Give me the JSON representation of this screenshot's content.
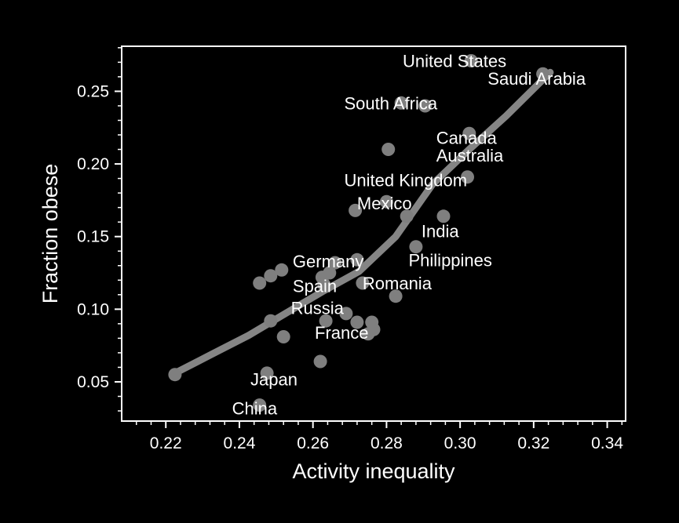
{
  "theme": {
    "background": "#000000",
    "foreground": "#ffffff",
    "point_color": "#7f7f7f",
    "trend_color": "#8c8c8c"
  },
  "chart_data": {
    "type": "scatter",
    "title": "",
    "xlabel": "Activity inequality",
    "ylabel": "Fraction obese",
    "xlim": [
      0.208,
      0.345
    ],
    "ylim": [
      0.023,
      0.281
    ],
    "xticks": [
      0.22,
      0.24,
      0.26,
      0.28,
      0.3,
      0.32,
      0.34
    ],
    "xtick_labels": [
      "0.22",
      "0.24",
      "0.26",
      "0.28",
      "0.30",
      "0.32",
      "0.34"
    ],
    "yticks": [
      0.05,
      0.1,
      0.15,
      0.2,
      0.25
    ],
    "ytick_labels": [
      "0.05",
      "0.10",
      "0.15",
      "0.20",
      "0.25"
    ],
    "grid": false,
    "legend": "none",
    "points": [
      {
        "x": 0.2225,
        "y": 0.055
      },
      {
        "x": 0.2455,
        "y": 0.034
      },
      {
        "x": 0.2475,
        "y": 0.056
      },
      {
        "x": 0.2455,
        "y": 0.118
      },
      {
        "x": 0.2485,
        "y": 0.123
      },
      {
        "x": 0.2485,
        "y": 0.092
      },
      {
        "x": 0.2515,
        "y": 0.127
      },
      {
        "x": 0.252,
        "y": 0.081
      },
      {
        "x": 0.262,
        "y": 0.064
      },
      {
        "x": 0.2625,
        "y": 0.122
      },
      {
        "x": 0.263,
        "y": 0.117
      },
      {
        "x": 0.2635,
        "y": 0.092
      },
      {
        "x": 0.2645,
        "y": 0.125
      },
      {
        "x": 0.266,
        "y": 0.132
      },
      {
        "x": 0.269,
        "y": 0.097
      },
      {
        "x": 0.2715,
        "y": 0.168
      },
      {
        "x": 0.272,
        "y": 0.134
      },
      {
        "x": 0.272,
        "y": 0.091
      },
      {
        "x": 0.2735,
        "y": 0.118
      },
      {
        "x": 0.275,
        "y": 0.083
      },
      {
        "x": 0.276,
        "y": 0.091
      },
      {
        "x": 0.2765,
        "y": 0.086
      },
      {
        "x": 0.2805,
        "y": 0.21
      },
      {
        "x": 0.28,
        "y": 0.174
      },
      {
        "x": 0.2825,
        "y": 0.109
      },
      {
        "x": 0.284,
        "y": 0.242
      },
      {
        "x": 0.2855,
        "y": 0.164
      },
      {
        "x": 0.288,
        "y": 0.143
      },
      {
        "x": 0.2905,
        "y": 0.24
      },
      {
        "x": 0.2955,
        "y": 0.164
      },
      {
        "x": 0.303,
        "y": 0.271
      },
      {
        "x": 0.3025,
        "y": 0.221
      },
      {
        "x": 0.302,
        "y": 0.191
      },
      {
        "x": 0.3225,
        "y": 0.262
      }
    ],
    "trend": [
      {
        "x": 0.2225,
        "y": 0.056
      },
      {
        "x": 0.2325,
        "y": 0.069
      },
      {
        "x": 0.2425,
        "y": 0.082
      },
      {
        "x": 0.2525,
        "y": 0.097
      },
      {
        "x": 0.2625,
        "y": 0.112
      },
      {
        "x": 0.2725,
        "y": 0.126
      },
      {
        "x": 0.2825,
        "y": 0.15
      },
      {
        "x": 0.2925,
        "y": 0.186
      },
      {
        "x": 0.3025,
        "y": 0.21
      },
      {
        "x": 0.3125,
        "y": 0.233
      },
      {
        "x": 0.3245,
        "y": 0.263
      }
    ],
    "annotations": [
      {
        "text": "United States",
        "x": 0.2985,
        "y": 0.271,
        "anchor": "middle"
      },
      {
        "text": "Saudi Arabia",
        "x": 0.3075,
        "y": 0.259,
        "anchor": "start"
      },
      {
        "text": "South Africa",
        "x": 0.2685,
        "y": 0.242,
        "anchor": "start"
      },
      {
        "text": "Canada",
        "x": 0.2935,
        "y": 0.218,
        "anchor": "start"
      },
      {
        "text": "Australia",
        "x": 0.2935,
        "y": 0.206,
        "anchor": "start"
      },
      {
        "text": "United Kingdom",
        "x": 0.2685,
        "y": 0.189,
        "anchor": "start"
      },
      {
        "text": "Mexico",
        "x": 0.272,
        "y": 0.173,
        "anchor": "start"
      },
      {
        "text": "India",
        "x": 0.2895,
        "y": 0.154,
        "anchor": "start"
      },
      {
        "text": "Germany",
        "x": 0.2545,
        "y": 0.133,
        "anchor": "start"
      },
      {
        "text": "Philippines",
        "x": 0.286,
        "y": 0.134,
        "anchor": "start"
      },
      {
        "text": "Romania",
        "x": 0.2735,
        "y": 0.118,
        "anchor": "start"
      },
      {
        "text": "Spain",
        "x": 0.2545,
        "y": 0.116,
        "anchor": "start"
      },
      {
        "text": "Russia",
        "x": 0.254,
        "y": 0.101,
        "anchor": "start"
      },
      {
        "text": "France",
        "x": 0.2605,
        "y": 0.084,
        "anchor": "start"
      },
      {
        "text": "Japan",
        "x": 0.243,
        "y": 0.052,
        "anchor": "start"
      },
      {
        "text": "China",
        "x": 0.238,
        "y": 0.032,
        "anchor": "start"
      }
    ]
  }
}
